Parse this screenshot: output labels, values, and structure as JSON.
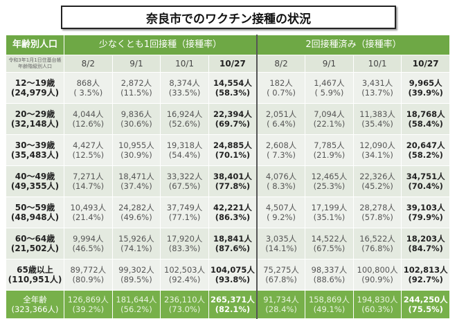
{
  "title": "奈良市でのワクチン接種の状況",
  "header": {
    "age_col": "年齢別人口",
    "group1": "少なくとも1回接種（接種率）",
    "group2": "2回接種済み（接種率）",
    "note": "令和3年1月1日住基台帳年齢階級別人口"
  },
  "dates": [
    "8/2",
    "9/1",
    "10/1",
    "10/27"
  ],
  "rows": [
    {
      "age": "12～19歳",
      "pop": "(24,979人)",
      "first": [
        [
          "868人",
          "( 3.5%)"
        ],
        [
          "2,872人",
          "(11.5%)"
        ],
        [
          "8,374人",
          "(33.5%)"
        ],
        [
          "14,554人",
          "(58.3%)"
        ]
      ],
      "second": [
        [
          "182人",
          "( 0.7%)"
        ],
        [
          "1,467人",
          "( 5.9%)"
        ],
        [
          "3,431人",
          "(13.7%)"
        ],
        [
          "9,965人",
          "(39.9%)"
        ]
      ]
    },
    {
      "age": "20～29歳",
      "pop": "(32,148人)",
      "first": [
        [
          "4,044人",
          "(12.6%)"
        ],
        [
          "9,836人",
          "(30.6%)"
        ],
        [
          "16,924人",
          "(52.6%)"
        ],
        [
          "22,394人",
          "(69.7%)"
        ]
      ],
      "second": [
        [
          "2,051人",
          "( 6.4%)"
        ],
        [
          "7,094人",
          "(22.1%)"
        ],
        [
          "11,383人",
          "(35.4%)"
        ],
        [
          "18,768人",
          "(58.4%)"
        ]
      ]
    },
    {
      "age": "30～39歳",
      "pop": "(35,483人)",
      "first": [
        [
          "4,427人",
          "(12.5%)"
        ],
        [
          "10,955人",
          "(30.9%)"
        ],
        [
          "19,318人",
          "(54.4%)"
        ],
        [
          "24,885人",
          "(70.1%)"
        ]
      ],
      "second": [
        [
          "2,608人",
          "( 7.3%)"
        ],
        [
          "7,785人",
          "(21.9%)"
        ],
        [
          "12,090人",
          "(34.1%)"
        ],
        [
          "20,647人",
          "(58.2%)"
        ]
      ]
    },
    {
      "age": "40～49歳",
      "pop": "(49,355人)",
      "first": [
        [
          "7,271人",
          "(14.7%)"
        ],
        [
          "18,471人",
          "(37.4%)"
        ],
        [
          "33,322人",
          "(67.5%)"
        ],
        [
          "38,401人",
          "(77.8%)"
        ]
      ],
      "second": [
        [
          "4,076人",
          "( 8.3%)"
        ],
        [
          "12,465人",
          "(25.3%)"
        ],
        [
          "22,326人",
          "(45.2%)"
        ],
        [
          "34,751人",
          "(70.4%)"
        ]
      ]
    },
    {
      "age": "50～59歳",
      "pop": "(48,948人)",
      "first": [
        [
          "10,493人",
          "(21.4%)"
        ],
        [
          "24,282人",
          "(49.6%)"
        ],
        [
          "37,749人",
          "(77.1%)"
        ],
        [
          "42,221人",
          "(86.3%)"
        ]
      ],
      "second": [
        [
          "4,507人",
          "( 9.2%)"
        ],
        [
          "17,199人",
          "(35.1%)"
        ],
        [
          "28,278人",
          "(57.8%)"
        ],
        [
          "39,103人",
          "(79.9%)"
        ]
      ]
    },
    {
      "age": "60～64歳",
      "pop": "(21,502人)",
      "first": [
        [
          "9,994人",
          "(46.5%)"
        ],
        [
          "15,926人",
          "(74.1%)"
        ],
        [
          "17,920人",
          "(83.3%)"
        ],
        [
          "18,841人",
          "(87.6%)"
        ]
      ],
      "second": [
        [
          "3,035人",
          "(14.1%)"
        ],
        [
          "14,522人",
          "(67.5%)"
        ],
        [
          "16,522人",
          "(76.8%)"
        ],
        [
          "18,203人",
          "(84.7%)"
        ]
      ]
    },
    {
      "age": "65歳以上",
      "pop": "(110,951人)",
      "first": [
        [
          "89,772人",
          "(80.9%)"
        ],
        [
          "99,302人",
          "(89.5%)"
        ],
        [
          "102,503人",
          "(92.4%)"
        ],
        [
          "104,075人",
          "(93.8%)"
        ]
      ],
      "second": [
        [
          "75,275人",
          "(67.8%)"
        ],
        [
          "98,337人",
          "(88.6%)"
        ],
        [
          "100,800人",
          "(90.9%)"
        ],
        [
          "102,813人",
          "(92.7%)"
        ]
      ]
    }
  ],
  "total": {
    "age": "全年齢",
    "pop": "(323,366人)",
    "first": [
      [
        "126,869人",
        "(39.2%)"
      ],
      [
        "181,644人",
        "(56.2%)"
      ],
      [
        "236,110人",
        "(73.0%)"
      ],
      [
        "265,371人",
        "(82.1%)"
      ]
    ],
    "second": [
      [
        "91,734人",
        "(28.4%)"
      ],
      [
        "158,869人",
        "(49.1%)"
      ],
      [
        "194,830人",
        "(60.3%)"
      ],
      [
        "244,250人",
        "(75.5%)"
      ]
    ]
  },
  "colors": {
    "header_green": "#6ea845",
    "total_green": "#77b04a"
  }
}
